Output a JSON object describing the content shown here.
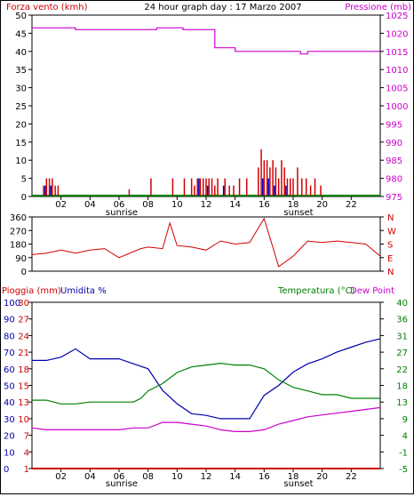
{
  "colors": {
    "wind": "#d00000",
    "pressure": "#cc00cc",
    "gust_blue": "#0000cc",
    "green": "#008000",
    "direction": "#d00000",
    "humidity": "#0000aa",
    "temperature": "#008000",
    "dewpoint": "#cc00cc",
    "rain": "#d00000",
    "frame": "#000000"
  },
  "chart_data": [
    {
      "type": "bar",
      "title": "24 hour graph day : 17 Marzo 2007",
      "left_axis_label": "Forza vento (kmh)",
      "right_axis_label": "Pressione (mb)",
      "x_tick_labels": [
        "02",
        "04",
        "06",
        "08",
        "10",
        "12",
        "14",
        "16",
        "18",
        "20",
        "22"
      ],
      "x_annotations": [
        "sunrise",
        "sunset"
      ],
      "left_ticks": [
        "50",
        "45",
        "40",
        "35",
        "30",
        "25",
        "20",
        "15",
        "10",
        "5",
        "0"
      ],
      "right_ticks": [
        "1025",
        "1020",
        "1015",
        "1010",
        "1005",
        "1000",
        "995",
        "990",
        "985",
        "980",
        "975"
      ],
      "ylim_wind": [
        0,
        50
      ],
      "ylim_pressure": [
        975,
        1025
      ],
      "series": [
        {
          "name": "Forza vento (kmh)",
          "kind": "wind_bars",
          "x_hours": [
            0.8,
            1.0,
            1.2,
            1.4,
            1.6,
            1.8,
            6.7,
            8.2,
            9.7,
            10.5,
            11.0,
            11.2,
            11.4,
            11.6,
            11.8,
            12.0,
            12.2,
            12.4,
            12.6,
            12.8,
            13.3,
            13.6,
            13.9,
            14.3,
            14.8,
            15.6,
            15.8,
            16.0,
            16.2,
            16.4,
            16.6,
            16.8,
            17.0,
            17.2,
            17.4,
            17.6,
            17.8,
            18.0,
            18.3,
            18.6,
            18.9,
            19.2,
            19.5,
            19.9
          ],
          "values": [
            3,
            5,
            5,
            5,
            3,
            3,
            2,
            5,
            5,
            5,
            5,
            3,
            5,
            5,
            5,
            5,
            5,
            5,
            3,
            5,
            5,
            3,
            3,
            5,
            5,
            8,
            13,
            10,
            10,
            8,
            10,
            8,
            5,
            10,
            8,
            5,
            5,
            5,
            8,
            5,
            5,
            3,
            5,
            3
          ]
        },
        {
          "name": "Raffica",
          "kind": "gust_bars",
          "x_hours": [
            0.9,
            1.3,
            11.5,
            12.1,
            13.2,
            15.9,
            16.3,
            16.7,
            17.5
          ],
          "values": [
            3,
            3,
            5,
            3,
            3,
            5,
            5,
            3,
            3
          ]
        },
        {
          "name": "Pressione (mb)",
          "kind": "line",
          "x_hours": [
            0,
            3,
            8.6,
            10.4,
            12.6,
            14.0,
            18.2,
            18.5,
            19.0,
            24
          ],
          "values": [
            1021.5,
            1021.0,
            1021.5,
            1021.0,
            1016.0,
            1015.0,
            1015.0,
            1014.3,
            1015.0,
            1015.0
          ]
        }
      ]
    },
    {
      "type": "line",
      "title": "Direzione vento",
      "left_ticks": [
        "360",
        "270",
        "180",
        "90",
        "0"
      ],
      "right_ticks": [
        "N",
        "W",
        "S",
        "E",
        "N"
      ],
      "ylim": [
        0,
        360
      ],
      "x_hours": [
        0,
        1,
        2,
        3,
        4,
        5,
        6,
        7,
        7.5,
        8,
        9,
        9.5,
        10,
        11,
        12,
        13,
        14,
        15,
        16,
        17,
        18,
        19,
        20,
        21,
        22,
        23,
        24
      ],
      "values": [
        110,
        120,
        140,
        120,
        140,
        150,
        90,
        130,
        150,
        160,
        150,
        320,
        170,
        160,
        140,
        200,
        180,
        190,
        350,
        30,
        100,
        200,
        190,
        200,
        190,
        180,
        100
      ]
    },
    {
      "type": "line",
      "left_axis_label": "Pioggia (mm)",
      "left_axis_label_2": "Umidita %",
      "right_axis_label": "Temperatura (°C)",
      "right_axis_label_2": "Dew Point",
      "x_tick_labels": [
        "02",
        "04",
        "06",
        "08",
        "10",
        "12",
        "14",
        "16",
        "18",
        "20",
        "22"
      ],
      "x_annotations": [
        "sunrise",
        "sunset"
      ],
      "humidity_ticks": [
        "100",
        "90",
        "80",
        "70",
        "60",
        "50",
        "40",
        "30",
        "20",
        "10",
        "0"
      ],
      "rain_ticks": [
        "30",
        "27",
        "24",
        "21",
        "18",
        "15",
        "13",
        "10",
        "7",
        "4",
        "1"
      ],
      "temp_ticks": [
        "40",
        "36",
        "31",
        "27",
        "22",
        "18",
        "13",
        "9",
        "4",
        "-1",
        "-5"
      ],
      "ylim_humidity": [
        0,
        100
      ],
      "ylim_temperature": [
        -5,
        40
      ],
      "ylim_rain": [
        1,
        30
      ],
      "series": [
        {
          "name": "Umidita %",
          "axis": "humidity",
          "x_hours": [
            0,
            1,
            2,
            3,
            4,
            5,
            6,
            7,
            8,
            9,
            10,
            11,
            12,
            13,
            14,
            15,
            16,
            17,
            18,
            19,
            20,
            21,
            22,
            23,
            24
          ],
          "values": [
            65,
            65,
            67,
            72,
            66,
            66,
            66,
            63,
            60,
            47,
            39,
            33,
            32,
            30,
            30,
            30,
            44,
            50,
            58,
            63,
            66,
            70,
            73,
            76,
            78
          ]
        },
        {
          "name": "Temperatura (°C)",
          "axis": "temperature",
          "x_hours": [
            0,
            1,
            2,
            3,
            4,
            5,
            6,
            7,
            7.5,
            8,
            9,
            10,
            11,
            12,
            13,
            14,
            15,
            16,
            17,
            18,
            19,
            20,
            21,
            22,
            23,
            24
          ],
          "values": [
            13.5,
            13.5,
            12.5,
            12.5,
            13,
            13,
            13,
            13,
            14,
            16,
            18,
            21,
            22.5,
            23,
            23.5,
            23,
            23,
            22,
            19,
            17,
            16,
            15,
            15,
            14,
            14,
            14
          ]
        },
        {
          "name": "Dew Point",
          "axis": "temperature",
          "x_hours": [
            0,
            1,
            2,
            3,
            4,
            5,
            6,
            7,
            8,
            9,
            10,
            11,
            12,
            13,
            14,
            15,
            16,
            17,
            18,
            19,
            20,
            21,
            22,
            23,
            24
          ],
          "values": [
            6,
            5.5,
            5.5,
            5.5,
            5.5,
            5.5,
            5.5,
            6,
            6,
            7.5,
            7.5,
            7,
            6.5,
            5.5,
            5,
            5,
            5.5,
            7,
            8,
            9,
            9.5,
            10,
            10.5,
            11,
            11.5
          ]
        },
        {
          "name": "Pioggia (mm)",
          "axis": "rain",
          "x_hours": [
            0,
            24
          ],
          "values": [
            1,
            1
          ]
        }
      ]
    }
  ]
}
